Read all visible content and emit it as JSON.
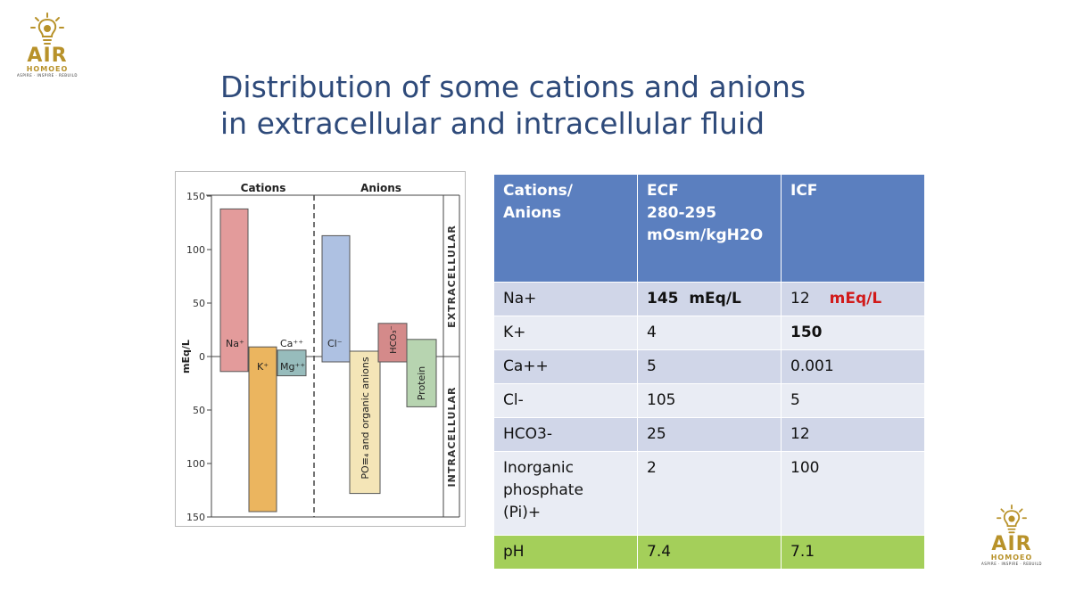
{
  "brand": {
    "name": "AIR",
    "sub": "HOMOEO",
    "tagline": "ASPIRE · INSPIRE · REBUILD",
    "color": "#b8922a"
  },
  "slide": {
    "title_line1": "Distribution of some cations and anions",
    "title_line2": "in extracellular and intracellular fluid"
  },
  "figure": {
    "header_cations": "Cations",
    "header_anions": "Anions",
    "ylabel": "mEq/L",
    "top_region": "EXTRACELLULAR",
    "bottom_region": "INTRACELLULAR",
    "ticks": [
      "150",
      "100",
      "50",
      "0",
      "50",
      "100",
      "150"
    ],
    "label_na": "Na⁺",
    "label_k": "K⁺",
    "label_ca": "Ca⁺⁺",
    "label_mg": "Mg⁺⁺",
    "label_cl": "Cl⁻",
    "label_hco3": "HCO₃⁻",
    "label_po4": "PO≡₄ and organic anions",
    "label_protein": "Protein"
  },
  "chart_data": {
    "type": "bar",
    "title": "",
    "ylabel": "mEq/L",
    "ylim": [
      -150,
      150
    ],
    "note": "positive = extracellular, negative = intracellular",
    "bars": [
      {
        "label": "Na+",
        "group": "Cations",
        "extracellular": 138,
        "intracellular": 14,
        "color": "#e39b9b"
      },
      {
        "label": "K+",
        "group": "Cations",
        "extracellular": 9,
        "intracellular": 145,
        "color": "#ebb55f"
      },
      {
        "label": "Ca++/Mg++",
        "group": "Cations",
        "extracellular": 6,
        "intracellular": 18,
        "color": "#97bcbc"
      },
      {
        "label": "Cl-",
        "group": "Anions",
        "extracellular": 113,
        "intracellular": 5,
        "color": "#aec1e2"
      },
      {
        "label": "PO4 and organic anions",
        "group": "Anions",
        "extracellular": 5,
        "intracellular": 128,
        "color": "#f4e5b7"
      },
      {
        "label": "HCO3-",
        "group": "Anions",
        "extracellular": 31,
        "intracellular": 5,
        "color": "#d48a8a"
      },
      {
        "label": "Protein",
        "group": "Anions",
        "extracellular": 16,
        "intracellular": 47,
        "color": "#b7d4b0"
      }
    ]
  },
  "table": {
    "headers": [
      {
        "lines": [
          "Cations/",
          "Anions"
        ]
      },
      {
        "lines": [
          "ECF",
          "280-295",
          "mOsm/kgH2O"
        ]
      },
      {
        "lines": [
          "ICF"
        ]
      }
    ],
    "rows": [
      {
        "ion": "Na+",
        "ecf": "145  mEq/L",
        "icf_num": "12",
        "icf_unit": "mEq/L"
      },
      {
        "ion": "K+",
        "ecf": "4",
        "icf": "150"
      },
      {
        "ion": "Ca++",
        "ecf": "5",
        "icf": "0.001"
      },
      {
        "ion": "Cl-",
        "ecf": "105",
        "icf": "5"
      },
      {
        "ion": "HCO3-",
        "ecf": "25",
        "icf": "12"
      },
      {
        "ion_lines": [
          "Inorganic",
          "phosphate",
          "(Pi)+"
        ],
        "ecf": "2",
        "icf": "100"
      },
      {
        "ion": "pH",
        "ecf": "7.4",
        "icf": "7.1"
      }
    ]
  }
}
